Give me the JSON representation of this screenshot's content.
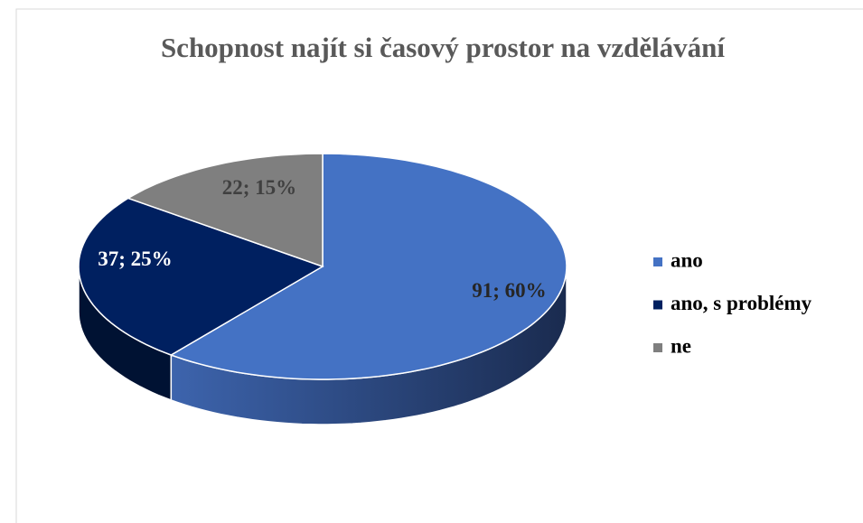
{
  "chart_data": {
    "type": "pie",
    "title": "Schopnost najít si časový prostor na vzdělávání",
    "categories": [
      "ano",
      "ano, s problémy",
      "ne"
    ],
    "values": [
      91,
      37,
      22
    ],
    "value_labels": [
      "91; 60%",
      "37; 25%",
      "22; 15%"
    ],
    "colors": [
      "#4472c4",
      "#002060",
      "#7f7f7f"
    ],
    "legend": "right"
  }
}
